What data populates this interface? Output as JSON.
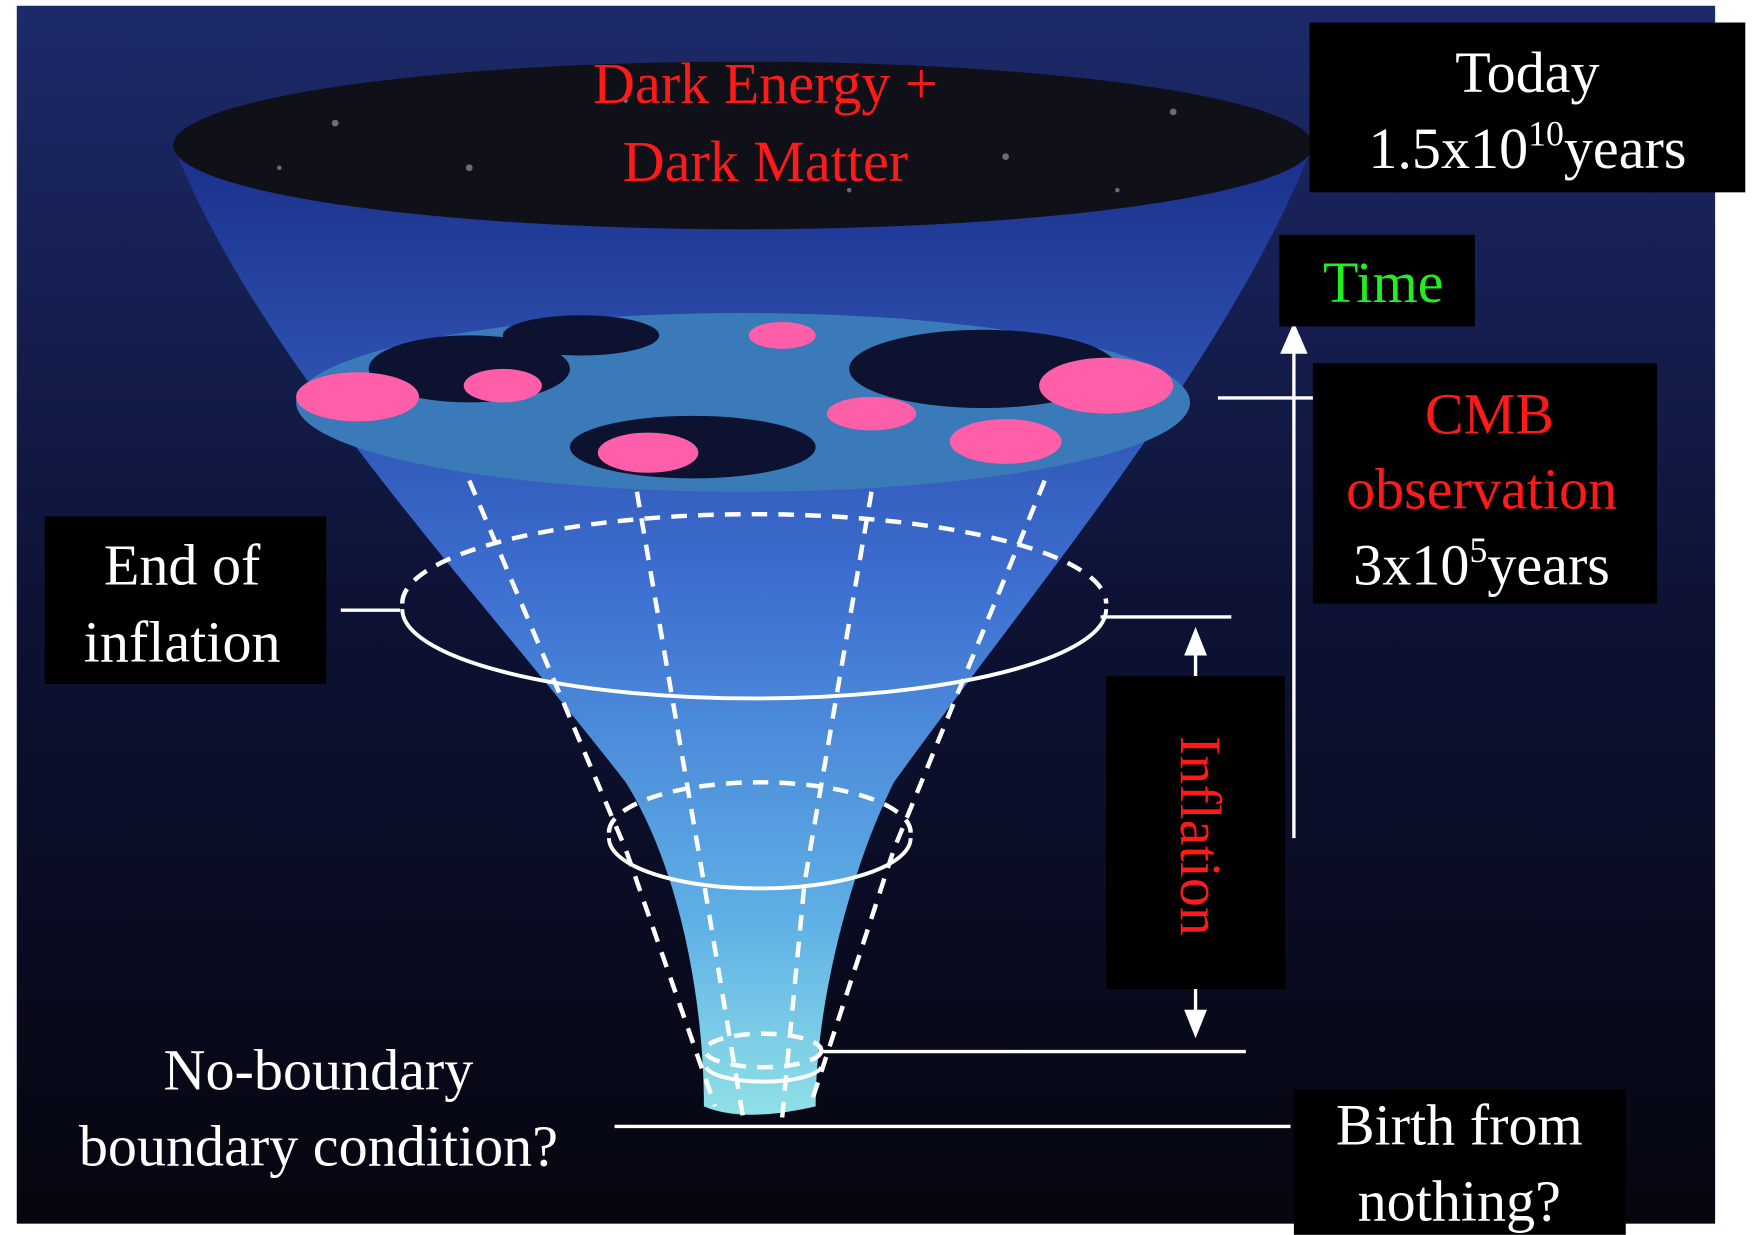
{
  "top_label": {
    "lines": [
      "Dark Energy +",
      "Dark Matter"
    ]
  },
  "today": {
    "title": "Today",
    "base": "1.5x10",
    "exponent": "10",
    "unit": "years"
  },
  "time": {
    "label": "Time"
  },
  "cmb": {
    "lines": [
      "CMB",
      "observation"
    ],
    "base": "3x10",
    "exponent": "5",
    "unit": "years"
  },
  "end_of_inflation": {
    "lines": [
      "End of",
      "inflation"
    ]
  },
  "inflation": {
    "label": "Inflation"
  },
  "no_boundary": {
    "lines": [
      "No-boundary",
      "boundary condition?"
    ]
  },
  "birth": {
    "lines": [
      "Birth from",
      "nothing?"
    ]
  }
}
